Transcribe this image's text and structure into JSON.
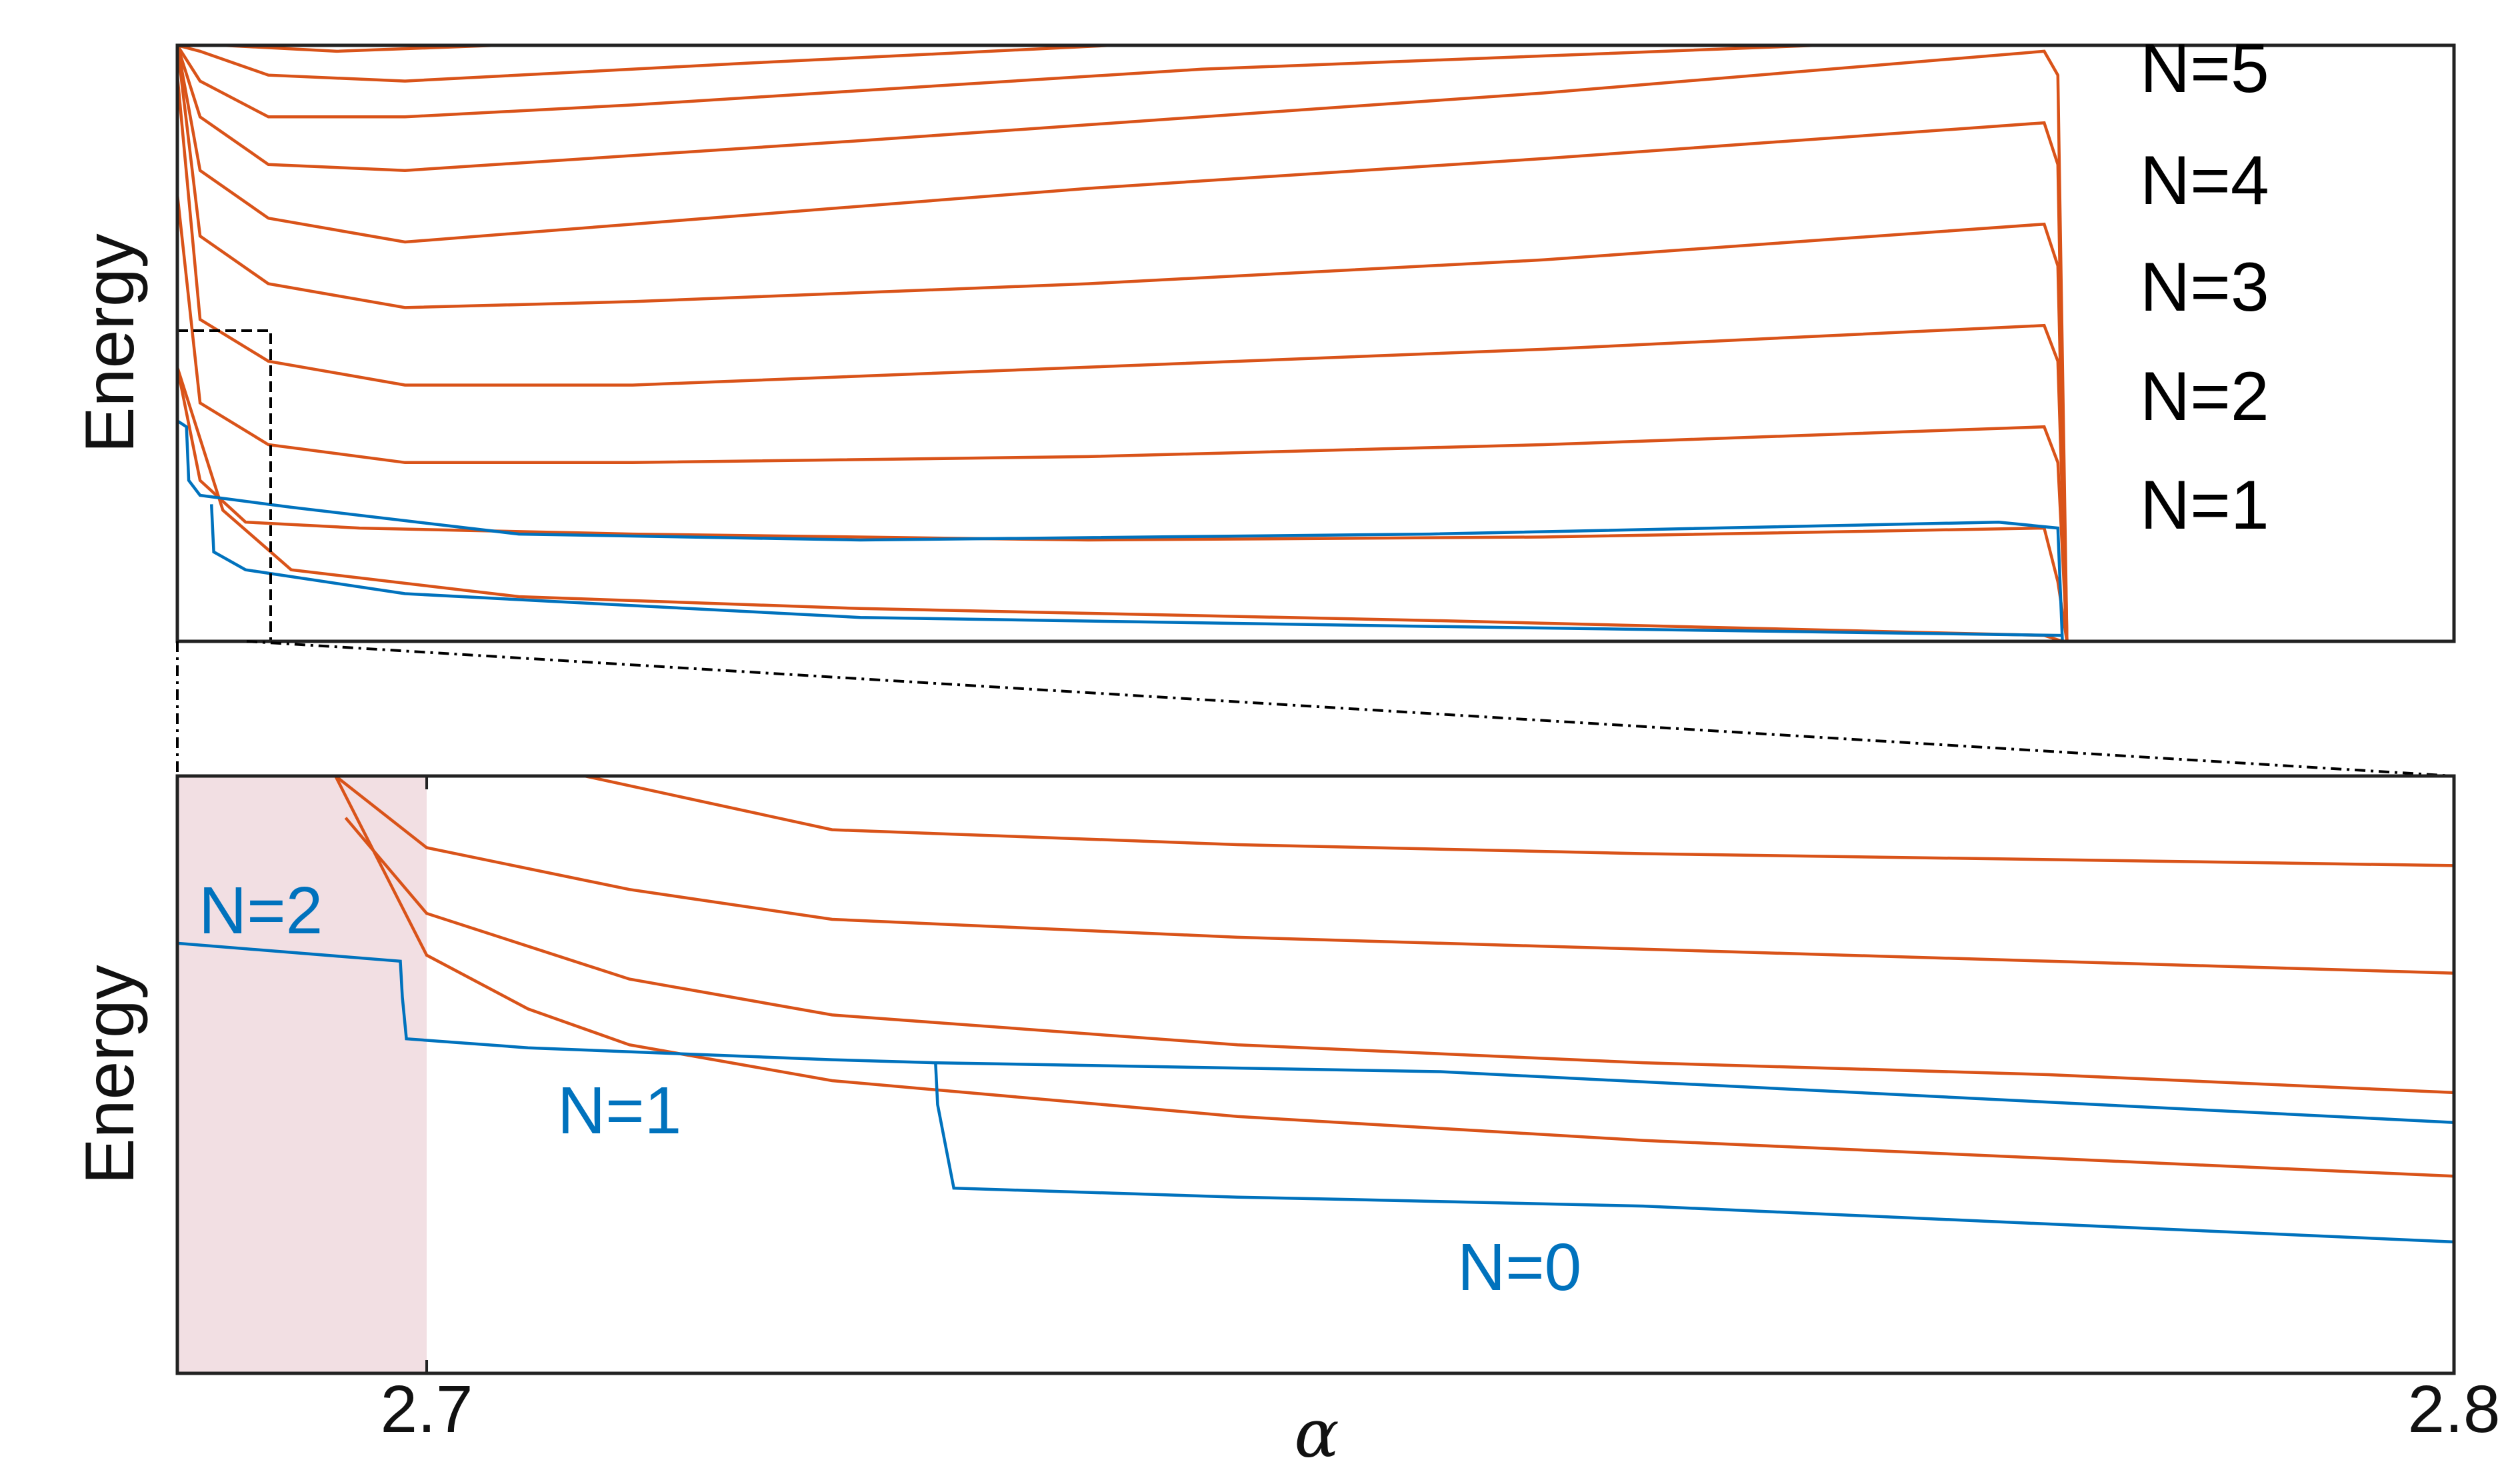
{
  "chart_data": [
    {
      "type": "line",
      "panel": "top",
      "ylabel": "Energy",
      "xlabel": "",
      "grid": false,
      "x_ticks_shown": false,
      "y_ticks_shown": false,
      "annotations": [
        "N=5",
        "N=4",
        "N=3",
        "N=2",
        "N=1"
      ],
      "annotation_color": "#000000",
      "series": [
        {
          "color": "#d95319",
          "x": [
            0.0,
            0.02,
            0.05,
            0.15,
            0.3,
            0.55,
            0.82,
            0.828,
            0.83
          ],
          "y": [
            0.46,
            0.22,
            0.12,
            0.075,
            0.055,
            0.035,
            0.01,
            0.0,
            0.0
          ]
        },
        {
          "color": "#d95319",
          "x": [
            0.0,
            0.01,
            0.03,
            0.08,
            0.2,
            0.4,
            0.6,
            0.82,
            0.826,
            0.83
          ],
          "y": [
            0.46,
            0.27,
            0.2,
            0.19,
            0.18,
            0.17,
            0.175,
            0.19,
            0.1,
            0.0
          ]
        },
        {
          "color": "#d95319",
          "x": [
            0.0,
            0.01,
            0.04,
            0.1,
            0.2,
            0.4,
            0.6,
            0.82,
            0.826,
            0.83
          ],
          "y": [
            0.75,
            0.4,
            0.33,
            0.3,
            0.3,
            0.31,
            0.33,
            0.36,
            0.3,
            0.0
          ]
        },
        {
          "color": "#d95319",
          "x": [
            0.0,
            0.01,
            0.04,
            0.1,
            0.2,
            0.4,
            0.6,
            0.82,
            0.826,
            0.83
          ],
          "y": [
            0.95,
            0.54,
            0.47,
            0.43,
            0.43,
            0.46,
            0.49,
            0.53,
            0.47,
            0.0
          ]
        },
        {
          "color": "#d95319",
          "x": [
            0.0,
            0.01,
            0.04,
            0.1,
            0.2,
            0.4,
            0.6,
            0.82,
            0.826,
            0.83
          ],
          "y": [
            1.0,
            0.68,
            0.6,
            0.56,
            0.57,
            0.6,
            0.64,
            0.7,
            0.63,
            0.0
          ]
        },
        {
          "color": "#d95319",
          "x": [
            0.0,
            0.01,
            0.04,
            0.1,
            0.2,
            0.4,
            0.6,
            0.82,
            0.826,
            0.83
          ],
          "y": [
            1.0,
            0.79,
            0.71,
            0.67,
            0.7,
            0.76,
            0.81,
            0.87,
            0.8,
            0.0
          ]
        },
        {
          "color": "#d95319",
          "x": [
            0.0,
            0.01,
            0.04,
            0.1,
            0.3,
            0.6,
            0.82,
            0.826,
            0.83
          ],
          "y": [
            1.0,
            0.88,
            0.8,
            0.79,
            0.84,
            0.92,
            0.99,
            0.95,
            0.0
          ]
        },
        {
          "color": "#d95319",
          "x": [
            0.0,
            0.01,
            0.04,
            0.1,
            0.2,
            0.45,
            0.72
          ],
          "y": [
            1.0,
            0.94,
            0.88,
            0.88,
            0.9,
            0.96,
            1.0
          ]
        },
        {
          "color": "#d95319",
          "x": [
            0.0,
            0.01,
            0.04,
            0.1,
            0.25,
            0.41
          ],
          "y": [
            1.0,
            0.99,
            0.95,
            0.94,
            0.97,
            1.0
          ]
        },
        {
          "color": "#d95319",
          "x": [
            0.0,
            0.02,
            0.07,
            0.14
          ],
          "y": [
            1.0,
            1.0,
            0.99,
            1.0
          ]
        },
        {
          "color": "#0072bd",
          "x": [
            0.0,
            0.004,
            0.005,
            0.01,
            0.05,
            0.15,
            0.3,
            0.55,
            0.8,
            0.826,
            0.828,
            1.0
          ],
          "y": [
            0.37,
            0.36,
            0.27,
            0.245,
            0.225,
            0.18,
            0.17,
            0.18,
            0.2,
            0.19,
            0.0,
            0.0
          ]
        },
        {
          "color": "#0072bd",
          "x": [
            0.015,
            0.016,
            0.03,
            0.1,
            0.3,
            0.55,
            0.828
          ],
          "y": [
            0.23,
            0.15,
            0.12,
            0.08,
            0.04,
            0.025,
            0.01
          ]
        }
      ]
    },
    {
      "type": "line",
      "panel": "bottom",
      "ylabel": "Energy",
      "xlabel": "α",
      "x_ticks": [
        "2.7",
        "2.8"
      ],
      "x_tick_values": [
        2.7,
        2.8
      ],
      "shaded_region": {
        "x": [
          2.6877,
          2.7
        ],
        "color": "#f2dfe3"
      },
      "grid": false,
      "annotations": [
        "N=2",
        "N=1",
        "N=0"
      ],
      "annotation_color": "#0072bd",
      "series": [
        {
          "color": "#d95319",
          "x": [
            2.7078,
            2.72,
            2.74,
            2.76,
            2.78,
            2.8
          ],
          "y": [
            1.0,
            0.91,
            0.885,
            0.87,
            0.86,
            0.85
          ]
        },
        {
          "color": "#d95319",
          "x": [
            2.6955,
            2.7,
            2.71,
            2.72,
            2.74,
            2.76,
            2.78,
            2.8
          ],
          "y": [
            1.0,
            0.88,
            0.81,
            0.76,
            0.73,
            0.71,
            0.69,
            0.67
          ]
        },
        {
          "color": "#d95319",
          "x": [
            2.696,
            2.7,
            2.71,
            2.72,
            2.74,
            2.76,
            2.78,
            2.8
          ],
          "y": [
            0.93,
            0.77,
            0.66,
            0.6,
            0.55,
            0.52,
            0.5,
            0.47
          ]
        },
        {
          "color": "#d95319",
          "x": [
            2.6955,
            2.7,
            2.705,
            2.71,
            2.72,
            2.74,
            2.76,
            2.78,
            2.8
          ],
          "y": [
            1.0,
            0.7,
            0.61,
            0.55,
            0.49,
            0.43,
            0.39,
            0.36,
            0.33
          ]
        },
        {
          "color": "#0072bd",
          "x": [
            2.6877,
            2.6987,
            2.6988,
            2.699,
            2.705,
            2.72,
            2.725,
            2.75,
            2.8
          ],
          "y": [
            0.72,
            0.69,
            0.63,
            0.56,
            0.545,
            0.525,
            0.52,
            0.505,
            0.42
          ]
        },
        {
          "color": "#0072bd",
          "x": [
            2.7251,
            2.7252,
            2.726,
            2.74,
            2.747,
            2.76,
            2.8
          ],
          "y": [
            0.52,
            0.45,
            0.31,
            0.295,
            0.29,
            0.28,
            0.22
          ]
        }
      ]
    }
  ]
}
